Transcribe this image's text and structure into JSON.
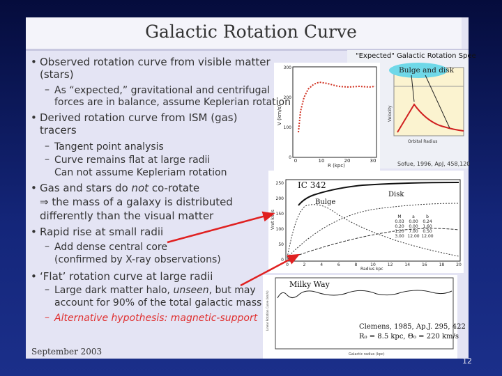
{
  "title": "Galactic Rotation Curve",
  "bullets": {
    "b0": [
      "Observed rotation curve from visible matter",
      "(stars)"
    ],
    "b0_sub": [
      "As “expected,” gravitational and centrifugal",
      "forces are in balance, assume Keplerian rotation"
    ],
    "b1": [
      "Derived rotation curve from ISM (gas)",
      "tracers"
    ],
    "b1_sub0": "Tangent point analysis",
    "b1_sub1": [
      "Curve remains flat at large radii",
      "Can not assume Kepleriam rotation"
    ],
    "b2": [
      "Gas and stars do ",
      "not",
      " co-rotate"
    ],
    "b2_more": [
      "⇒ the mass of a galaxy is distributed",
      "differently than the visual matter"
    ],
    "b3": "Rapid rise at small radii",
    "b3_sub": [
      "Add dense central core",
      "(confirmed by X-ray observations)"
    ],
    "b4": "‘Flat’ rotation curve at large radii",
    "b4_sub": [
      "Large dark matter halo, ",
      "unseen",
      ", but may"
    ],
    "b4_sub_more": "account for 90% of the total galactic mass",
    "b4_sub_red": "Alternative hypothesis: magnetic-support"
  },
  "footer": "September 2003",
  "page_number": "12",
  "figures": {
    "sofue": {
      "y_label": "V (km/s)",
      "x_label": "R (kpc)",
      "xticks": [
        "0",
        "10",
        "20",
        "30"
      ],
      "yticks": [
        "0",
        "100",
        "200",
        "300"
      ],
      "citation": "Sofue, 1996, ApJ, 458,120"
    },
    "expected": {
      "title": "\"Expected\" Galactic Rotation Spee",
      "label": "Bulge and disk",
      "y_label": "Velocity",
      "x_label": "Orbital Radius"
    },
    "ic342": {
      "title": "IC 342",
      "disk": "Disk",
      "bulge": "Bulge",
      "x_label": "Radius kpc",
      "y_label": "Vrot km/s",
      "xticks": [
        "0",
        "2",
        "4",
        "6",
        "8",
        "10",
        "12",
        "14",
        "16",
        "18",
        "20"
      ],
      "yticks": [
        "0",
        "50",
        "100",
        "150",
        "200",
        "250"
      ],
      "table_header": [
        "M",
        "a",
        "b"
      ],
      "table_rows": [
        [
          "0.03",
          "0.00",
          "0.24"
        ],
        [
          "0.20",
          "0.00",
          "1.60"
        ],
        [
          "1.20",
          "7.00",
          "0.50"
        ],
        [
          "3.00",
          "12.00",
          "12.00"
        ]
      ]
    },
    "milkyway": {
      "title": "Milky Way",
      "citation": "Clemens, 1985, Ap.J. 295, 422",
      "params": "R₀ = 8.5 kpc, Θ₀ = 220 km/s",
      "y_label": "Linear Rotation Curve (km/s)",
      "x_label": "Galactic radius (kpc)"
    }
  }
}
